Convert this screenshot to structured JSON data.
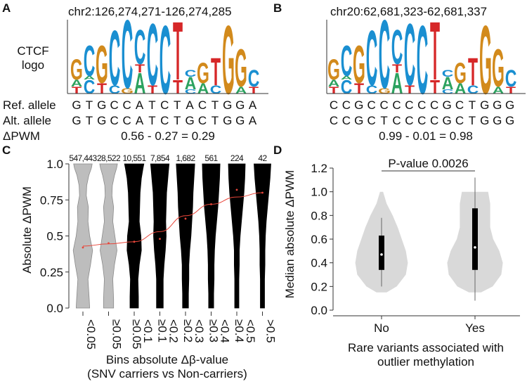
{
  "panels": {
    "A": {
      "letter": "A",
      "coord": "chr2:126,274,271-126,274,285",
      "logo_label_line1": "CTCF",
      "logo_label_line2": "logo",
      "ref_label": "Ref. allele",
      "alt_label": "Alt. allele",
      "dpwm_label": "ΔPWM",
      "ref_seq": [
        "G",
        "T",
        "G",
        "C",
        "C",
        "A",
        "T",
        "C",
        "T",
        "A",
        "C",
        "T",
        "G",
        "G",
        "A"
      ],
      "alt_seq": [
        "G",
        "T",
        "G",
        "C",
        "C",
        "A",
        "T",
        "C",
        "T",
        "G",
        "C",
        "T",
        "G",
        "G",
        "A"
      ],
      "ref_highlight": {
        "index": 9,
        "color": "#2ca25f"
      },
      "alt_highlight": {
        "index": 9,
        "color": "#d28a1c"
      },
      "equation": "0.56 - 0.27 = 0.29"
    },
    "B": {
      "letter": "B",
      "coord": "chr20:62,681,323-62,681,337",
      "ref_seq": [
        "C",
        "C",
        "G",
        "C",
        "C",
        "C",
        "C",
        "C",
        "C",
        "G",
        "C",
        "T",
        "G",
        "G",
        "G"
      ],
      "alt_seq": [
        "C",
        "C",
        "G",
        "C",
        "T",
        "C",
        "C",
        "C",
        "C",
        "G",
        "C",
        "T",
        "G",
        "G",
        "G"
      ],
      "ref_highlight": {
        "index": 4,
        "color": "#1a8fd1"
      },
      "alt_highlight": {
        "index": 4,
        "color": "#d62728"
      },
      "equation": "0.99 - 0.01 = 0.98"
    },
    "C": {
      "letter": "C",
      "ylabel": "Absolute ΔPWM",
      "xlabel_line1": "Bins  absolute Δβ-value",
      "xlabel_line2": "(SNV carriers vs Non-carriers)"
    },
    "D": {
      "letter": "D",
      "ylabel": "Median absolute ΔPWM",
      "xlabel_line1": "Rare variants associated with",
      "xlabel_line2": "outlier methylation",
      "pvalue": "P-value 0.0026"
    }
  },
  "logo_colors": {
    "A": "#2ca25f",
    "C": "#1a8fd1",
    "G": "#d28a1c",
    "T": "#d62728"
  },
  "chart_data": [
    {
      "type": "violin",
      "panel": "C",
      "categories": [
        "<0.05",
        "≥0.05",
        "≥0.05\n<0.1",
        "≥0.1\n<0.2",
        "≥0.2\n<0.3",
        "≥0.3\n<0.4",
        "≥0.4\n<0.5",
        ">0.5"
      ],
      "tick_labels": [
        "<0.05",
        "≥0.05",
        "≥0.05",
        "<0.1",
        "≥0.1",
        "<0.2",
        "≥0.2",
        "<0.3",
        "≥0.3",
        "<0.4",
        "≥0.4",
        "<0.5",
        ">0.5"
      ],
      "counts": [
        "547,443",
        "28,522",
        "10,551",
        "7,854",
        "1,682",
        "561",
        "224",
        "42"
      ],
      "medians": [
        0.42,
        0.45,
        0.46,
        0.48,
        0.62,
        0.72,
        0.82,
        0.8
      ],
      "trend_y": [
        0.43,
        0.445,
        0.46,
        0.53,
        0.64,
        0.72,
        0.77,
        0.8
      ],
      "fill": [
        "#bdbdbd",
        "#bdbdbd",
        "#000000",
        "#000000",
        "#000000",
        "#000000",
        "#000000",
        "#000000"
      ],
      "ylim": [
        0,
        1
      ],
      "yticks": [
        0.0,
        0.25,
        0.5,
        0.75,
        1.0
      ],
      "ytick_labels": [
        "0.0",
        "0.25",
        "0.5",
        "0.75",
        "1.0"
      ],
      "trend_color": "#e8463a"
    },
    {
      "type": "violin",
      "panel": "D",
      "categories": [
        "No",
        "Yes"
      ],
      "medians": [
        0.47,
        0.53
      ],
      "q1": [
        0.34,
        0.34
      ],
      "q3": [
        0.63,
        0.86
      ],
      "whisker_low": [
        0.2,
        0.08
      ],
      "whisker_high": [
        0.78,
        1.12
      ],
      "ylim": [
        0,
        1.2
      ],
      "yticks": [
        0.0,
        0.2,
        0.4,
        0.6,
        0.8,
        1.0,
        1.2
      ],
      "ytick_labels": [
        "0.0",
        "0.2",
        "0.4",
        "0.6",
        "0.8",
        "1.0",
        "1.2"
      ],
      "violin_color": "#d9d9d9"
    }
  ]
}
